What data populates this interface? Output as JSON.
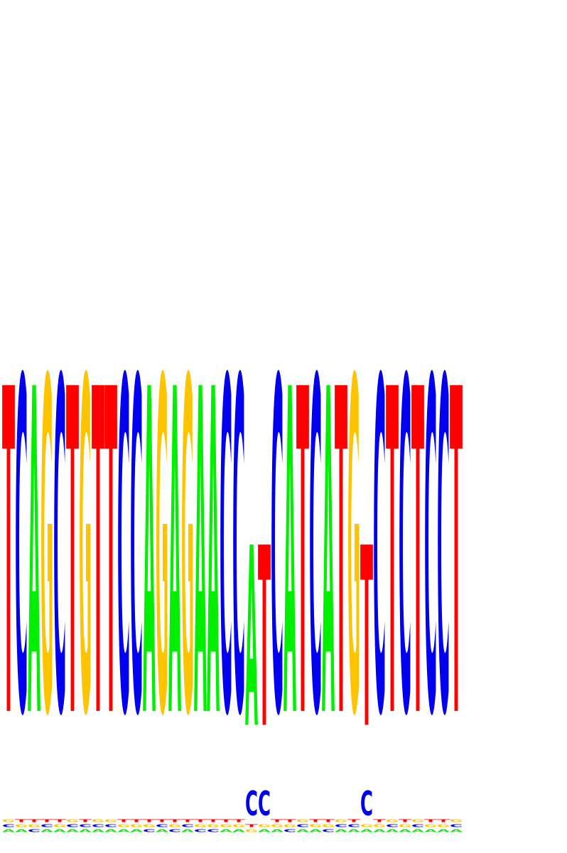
{
  "chart_data": {
    "type": "sequence_logo",
    "title": "",
    "xlabel": "",
    "ylabel": "",
    "alphabet": [
      "A",
      "C",
      "G",
      "T"
    ],
    "colors": {
      "A": "#00ee00",
      "C": "#0000ee",
      "G": "#ffc400",
      "T": "#ff0000"
    },
    "max_bits": 2,
    "ylim": [
      0,
      2.0
    ],
    "positions": [
      {
        "main": "T",
        "height": 1.94
      },
      {
        "main": "C",
        "height": 1.98
      },
      {
        "main": "A",
        "height": 1.94
      },
      {
        "main": "G",
        "height": 1.98
      },
      {
        "main": "C",
        "height": 1.98
      },
      {
        "main": "T",
        "height": 1.94
      },
      {
        "main": "G",
        "height": 1.98
      },
      {
        "main": "T",
        "height": 1.94
      },
      {
        "main": "T",
        "height": 1.94
      },
      {
        "main": "C",
        "height": 1.98
      },
      {
        "main": "C",
        "height": 1.98
      },
      {
        "main": "A",
        "height": 1.94
      },
      {
        "main": "G",
        "height": 1.98
      },
      {
        "main": "A",
        "height": 1.94
      },
      {
        "main": "G",
        "height": 1.98
      },
      {
        "main": "A",
        "height": 1.94
      },
      {
        "main": "A",
        "height": 1.94
      },
      {
        "main": "C",
        "height": 1.98
      },
      {
        "main": "C",
        "height": 1.98
      },
      {
        "main": "A",
        "height": 1.22,
        "sub": [
          {
            "letter": "C",
            "height": 0.38
          }
        ]
      },
      {
        "main": "T",
        "height": 1.22,
        "sub": [
          {
            "letter": "C",
            "height": 0.38
          }
        ]
      },
      {
        "main": "C",
        "height": 1.98
      },
      {
        "main": "A",
        "height": 1.94
      },
      {
        "main": "T",
        "height": 1.94
      },
      {
        "main": "C",
        "height": 1.98
      },
      {
        "main": "A",
        "height": 1.94
      },
      {
        "main": "T",
        "height": 1.94
      },
      {
        "main": "G",
        "height": 1.98
      },
      {
        "main": "T",
        "height": 1.22,
        "sub": [
          {
            "letter": "C",
            "height": 0.38
          }
        ]
      },
      {
        "main": "C",
        "height": 1.98
      },
      {
        "main": "T",
        "height": 1.94
      },
      {
        "main": "C",
        "height": 1.98
      },
      {
        "main": "T",
        "height": 1.94
      },
      {
        "main": "C",
        "height": 1.98
      },
      {
        "main": "C",
        "height": 1.98
      },
      {
        "main": "T",
        "height": 1.94
      }
    ]
  }
}
